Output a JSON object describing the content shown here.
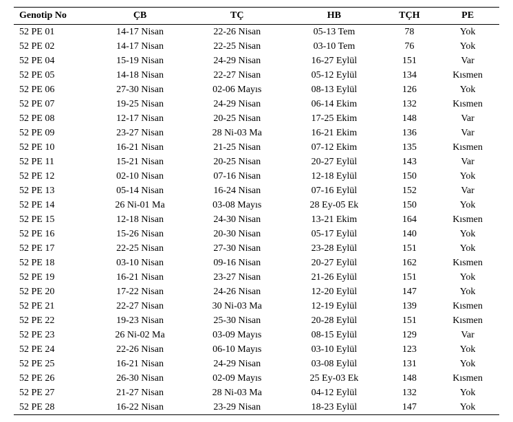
{
  "table": {
    "columns": [
      "Genotip No",
      "ÇB",
      "TÇ",
      "HB",
      "TÇH",
      "PE"
    ],
    "rows": [
      [
        "52 PE 01",
        "14-17 Nisan",
        "22-26 Nisan",
        "05-13 Tem",
        "78",
        "Yok"
      ],
      [
        "52 PE 02",
        "14-17 Nisan",
        "22-25 Nisan",
        "03-10 Tem",
        "76",
        "Yok"
      ],
      [
        "52 PE 04",
        "15-19 Nisan",
        "24-29 Nisan",
        "16-27 Eylül",
        "151",
        "Var"
      ],
      [
        "52 PE 05",
        "14-18 Nisan",
        "22-27 Nisan",
        "05-12 Eylül",
        "134",
        "Kısmen"
      ],
      [
        "52 PE 06",
        "27-30 Nisan",
        "02-06 Mayıs",
        "08-13 Eylül",
        "126",
        "Yok"
      ],
      [
        "52 PE 07",
        "19-25 Nisan",
        "24-29 Nisan",
        "06-14 Ekim",
        "132",
        "Kısmen"
      ],
      [
        "52 PE 08",
        "12-17 Nisan",
        "20-25 Nisan",
        "17-25 Ekim",
        "148",
        "Var"
      ],
      [
        "52 PE 09",
        "23-27 Nisan",
        "28 Ni-03 Ma",
        "16-21 Ekim",
        "136",
        "Var"
      ],
      [
        "52 PE 10",
        "16-21 Nisan",
        "21-25 Nisan",
        "07-12 Ekim",
        "135",
        "Kısmen"
      ],
      [
        "52 PE 11",
        "15-21 Nisan",
        "20-25 Nisan",
        "20-27 Eylül",
        "143",
        "Var"
      ],
      [
        "52 PE 12",
        "02-10 Nisan",
        "07-16 Nisan",
        "12-18 Eylül",
        "150",
        "Yok"
      ],
      [
        "52 PE 13",
        "05-14 Nisan",
        "16-24 Nisan",
        "07-16 Eylül",
        "152",
        "Var"
      ],
      [
        "52 PE 14",
        "26 Ni-01 Ma",
        "03-08 Mayıs",
        "28 Ey-05 Ek",
        "150",
        "Yok"
      ],
      [
        "52 PE 15",
        "12-18 Nisan",
        "24-30 Nisan",
        "13-21 Ekim",
        "164",
        "Kısmen"
      ],
      [
        "52 PE 16",
        "15-26 Nisan",
        "20-30 Nisan",
        "05-17 Eylül",
        "140",
        "Yok"
      ],
      [
        "52 PE 17",
        "22-25 Nisan",
        "27-30 Nisan",
        "23-28 Eylül",
        "151",
        "Yok"
      ],
      [
        "52 PE 18",
        "03-10 Nisan",
        "09-16 Nisan",
        "20-27 Eylül",
        "162",
        "Kısmen"
      ],
      [
        "52 PE 19",
        "16-21 Nisan",
        "23-27 Nisan",
        "21-26 Eylül",
        "151",
        "Yok"
      ],
      [
        "52 PE 20",
        "17-22 Nisan",
        "24-26 Nisan",
        "12-20 Eylül",
        "147",
        "Yok"
      ],
      [
        "52 PE 21",
        "22-27 Nisan",
        "30 Ni-03 Ma",
        "12-19 Eylül",
        "139",
        "Kısmen"
      ],
      [
        "52 PE 22",
        "19-23 Nisan",
        "25-30 Nisan",
        "20-28 Eylül",
        "151",
        "Kısmen"
      ],
      [
        "52 PE 23",
        "26 Ni-02 Ma",
        "03-09 Mayıs",
        "08-15 Eylül",
        "129",
        "Var"
      ],
      [
        "52 PE 24",
        "22-26 Nisan",
        "06-10 Mayıs",
        "03-10 Eylül",
        "123",
        "Yok"
      ],
      [
        "52 PE 25",
        "16-21 Nisan",
        "24-29 Nisan",
        "03-08 Eylül",
        "131",
        "Yok"
      ],
      [
        "52 PE 26",
        "26-30 Nisan",
        "02-09 Mayıs",
        "25 Ey-03 Ek",
        "148",
        "Kısmen"
      ],
      [
        "52 PE 27",
        "21-27 Nisan",
        "28 Ni-03 Ma",
        "04-12 Eylül",
        "132",
        "Yok"
      ],
      [
        "52 PE 28",
        "16-22 Nisan",
        "23-29 Nisan",
        "18-23 Eylül",
        "147",
        "Yok"
      ]
    ]
  }
}
